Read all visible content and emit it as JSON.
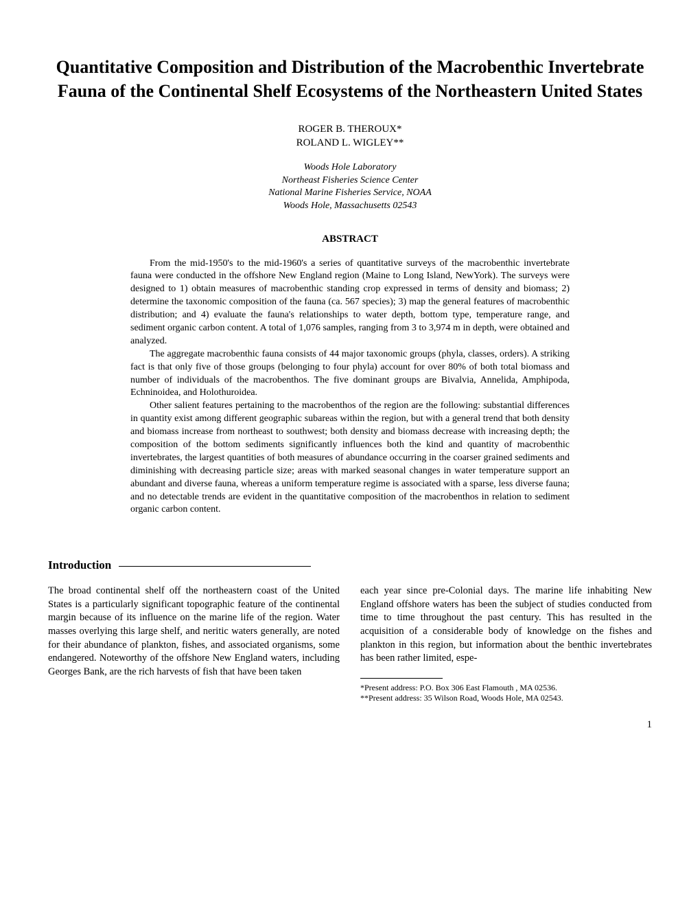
{
  "title": "Quantitative Composition and Distribution of the Macrobenthic Invertebrate Fauna of the Continental Shelf Ecosystems of the Northeastern United States",
  "authors": {
    "line1": "ROGER B. THEROUX*",
    "line2": "ROLAND L. WIGLEY**"
  },
  "affiliation": {
    "line1": "Woods Hole Laboratory",
    "line2": "Northeast Fisheries Science Center",
    "line3": "National Marine Fisheries Service, NOAA",
    "line4": "Woods Hole, Massachusetts 02543"
  },
  "abstract_heading": "ABSTRACT",
  "abstract": {
    "p1": "From the mid-1950's to the mid-1960's a series of quantitative surveys of the macrobenthic invertebrate fauna were conducted in the offshore New England region (Maine to Long Island, NewYork). The surveys were designed to 1) obtain measures of macrobenthic standing crop expressed in terms of density and biomass; 2) determine the taxonomic composition of the fauna (ca. 567 species); 3) map the general features of macrobenthic distribution; and 4) evaluate the fauna's relationships to water depth, bottom type, temperature range, and sediment organic carbon content. A total of 1,076 samples, ranging from 3 to 3,974 m in depth, were obtained and analyzed.",
    "p2": "The aggregate macrobenthic fauna consists of 44 major taxonomic groups (phyla, classes, orders). A striking fact is that only five of those groups (belonging to four phyla) account for over 80% of both total biomass and number of individuals of the macrobenthos. The five dominant groups are Bivalvia, Annelida, Amphipoda, Echninoidea, and Holothuroidea.",
    "p3": "Other salient features pertaining to the macrobenthos of the region are the following: substantial differences in quantity exist among different geographic subareas within the region, but with a general trend that both density and biomass increase from northeast to southwest; both density and biomass decrease with increasing depth; the composition of the bottom sediments significantly influences both the kind and quantity of macrobenthic invertebrates, the largest quantities of both measures of abundance occurring in the coarser grained sediments and diminishing with decreasing particle size; areas with marked seasonal changes in water temperature support an abundant and diverse fauna, whereas a uniform temperature regime is associated with a sparse, less diverse fauna; and no detectable trends are evident in the quantitative composition of the macrobenthos in relation to sediment organic carbon content."
  },
  "section_heading": "Introduction",
  "body": {
    "col1": "The broad continental shelf off the northeastern coast of the United States is a particularly significant topographic feature of the continental margin because of its influence on the marine life of the region. Water masses overlying this large shelf, and neritic waters generally, are noted for their abundance of plankton, fishes, and associated organisms, some endangered. Noteworthy of the offshore New England waters, including Georges Bank, are the rich harvests of fish that have been taken",
    "col2": "each year since pre-Colonial days. The marine life inhabiting New England offshore waters has been the subject of studies conducted from time to time throughout the past century. This has resulted in the acquisition of a considerable body of knowledge on the fishes and plankton in this region, but information about the benthic invertebrates has been rather limited, espe-"
  },
  "footnotes": {
    "f1": "*Present address: P.O. Box 306 East Flamouth , MA 02536.",
    "f2": "**Present address: 35 Wilson Road, Woods Hole, MA 02543."
  },
  "page_number": "1"
}
